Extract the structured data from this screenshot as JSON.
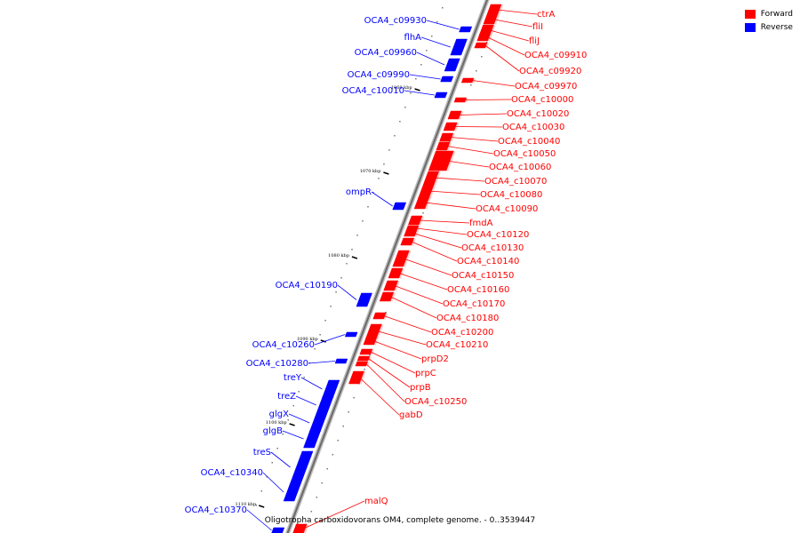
{
  "legend": {
    "forward_label": "Forward",
    "reverse_label": "Reverse",
    "forward_color": "#ff0000",
    "reverse_color": "#0000ff"
  },
  "caption": "Oligotropha carboxidovorans OM4, complete genome. - 0..3539447",
  "ticks": [
    "1060 kbp",
    "1070 kbp",
    "1080 kbp",
    "1090 kbp",
    "1100 kbp",
    "1110 kbp"
  ],
  "forward_genes": [
    "ctrA",
    "fliI",
    "fliJ",
    "OCA4_c09910",
    "OCA4_c09920",
    "OCA4_c09970",
    "OCA4_c10000",
    "OCA4_c10020",
    "OCA4_c10030",
    "OCA4_c10040",
    "OCA4_c10050",
    "OCA4_c10060",
    "OCA4_c10070",
    "OCA4_c10080",
    "OCA4_c10090",
    "fmdA",
    "OCA4_c10120",
    "OCA4_c10130",
    "OCA4_c10140",
    "OCA4_c10150",
    "OCA4_c10160",
    "OCA4_c10170",
    "OCA4_c10180",
    "OCA4_c10200",
    "OCA4_c10210",
    "prpD2",
    "prpC",
    "prpB",
    "OCA4_c10250",
    "gabD",
    "malQ"
  ],
  "reverse_genes": [
    "OCA4_c09930",
    "flhA",
    "OCA4_c09960",
    "OCA4_c09990",
    "OCA4_c10010",
    "ompR",
    "OCA4_c10190",
    "OCA4_c10260",
    "OCA4_c10280",
    "treY",
    "treZ",
    "glgX",
    "glgB",
    "treS",
    "OCA4_c10340",
    "OCA4_c10370"
  ]
}
